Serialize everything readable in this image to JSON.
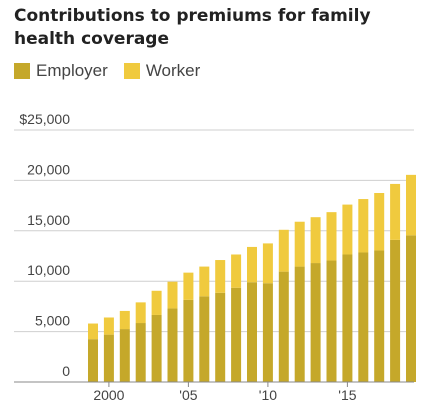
{
  "colors": {
    "employer": "#c5a82a",
    "worker": "#f0ca3e",
    "grid": "#cfcfcf",
    "axis": "#888888"
  },
  "chart_data": {
    "type": "bar",
    "stacked": true,
    "title": "Contributions to premiums for family health coverage",
    "legend_placement": "top-left",
    "grid": true,
    "ylim": [
      0,
      25000
    ],
    "y_ticks": [
      {
        "value": 25000,
        "label": "$25,000"
      },
      {
        "value": 20000,
        "label": "20,000"
      },
      {
        "value": 15000,
        "label": "15,000"
      },
      {
        "value": 10000,
        "label": "10,000"
      },
      {
        "value": 5000,
        "label": "5,000"
      },
      {
        "value": 0,
        "label": "0"
      }
    ],
    "x_ticks": [
      {
        "year": 2000,
        "label": "2000"
      },
      {
        "year": 2005,
        "label": "'05"
      },
      {
        "year": 2010,
        "label": "'10"
      },
      {
        "year": 2015,
        "label": "'15"
      }
    ],
    "categories": [
      1999,
      2000,
      2001,
      2002,
      2003,
      2004,
      2005,
      2006,
      2007,
      2008,
      2009,
      2010,
      2011,
      2012,
      2013,
      2014,
      2015,
      2016,
      2017,
      2018,
      2019
    ],
    "series": [
      {
        "name": "Employer",
        "values": [
          4250,
          4700,
          5250,
          5850,
          6650,
          7300,
          8150,
          8500,
          8850,
          9350,
          9900,
          9800,
          10950,
          11450,
          11800,
          12050,
          12650,
          12850,
          13050,
          14100,
          14550
        ]
      },
      {
        "name": "Worker",
        "values": [
          1550,
          1700,
          1800,
          2050,
          2400,
          2650,
          2700,
          2950,
          3250,
          3300,
          3500,
          3950,
          4150,
          4450,
          4550,
          4800,
          4950,
          5300,
          5700,
          5550,
          6000
        ]
      }
    ]
  }
}
